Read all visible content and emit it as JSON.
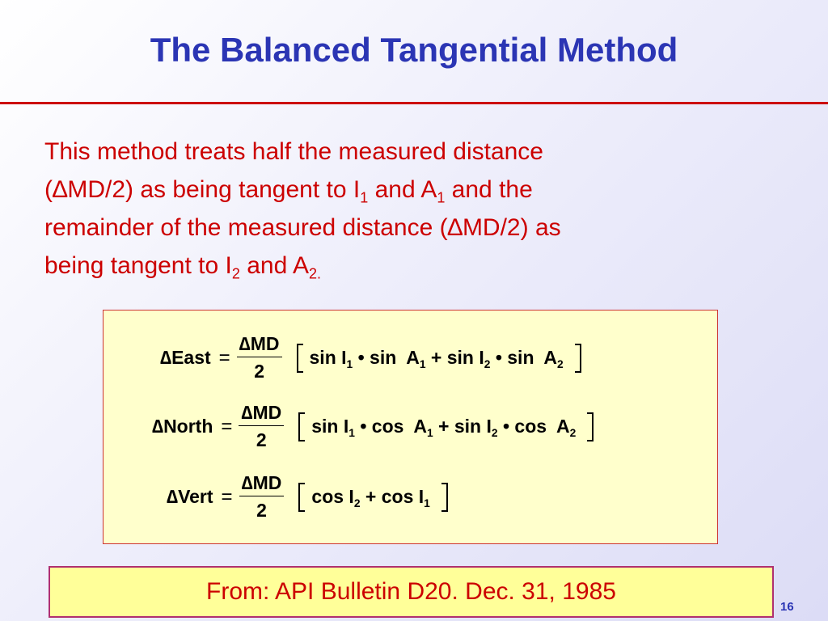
{
  "title": "The Balanced Tangential Method",
  "paragraph": [
    [
      "This method treats half the measured distance"
    ],
    [
      "(∆MD/2) as being tangent to I",
      {
        "sub": "1"
      },
      " and A",
      {
        "sub": "1"
      },
      " and the"
    ],
    [
      "remainder of the measured distance  (∆MD/2)  as"
    ],
    [
      "being tangent to I",
      {
        "sub": "2"
      },
      " and A",
      {
        "sub": "2."
      }
    ]
  ],
  "equations": [
    {
      "lhs": "∆East",
      "equals": "=",
      "numerator": "∆MD",
      "denominator": "2",
      "terms": [
        "sin I",
        {
          "sub": "1"
        },
        " • sin  A",
        {
          "sub": "1"
        },
        " + sin I",
        {
          "sub": "2"
        },
        " • sin  A",
        {
          "sub": "2"
        }
      ]
    },
    {
      "lhs": "∆North",
      "equals": "=",
      "numerator": "∆MD",
      "denominator": "2",
      "terms": [
        "sin I",
        {
          "sub": "1"
        },
        " • cos  A",
        {
          "sub": "1"
        },
        " + sin I",
        {
          "sub": "2"
        },
        " • cos  A",
        {
          "sub": "2"
        }
      ]
    },
    {
      "lhs": "∆Vert",
      "equals": "=",
      "numerator": "∆MD",
      "denominator": "2",
      "terms": [
        "cos I",
        {
          "sub": "2"
        },
        " + cos I",
        {
          "sub": "1"
        }
      ]
    }
  ],
  "source": "From: API Bulletin D20. Dec. 31, 1985",
  "page_number": "16"
}
